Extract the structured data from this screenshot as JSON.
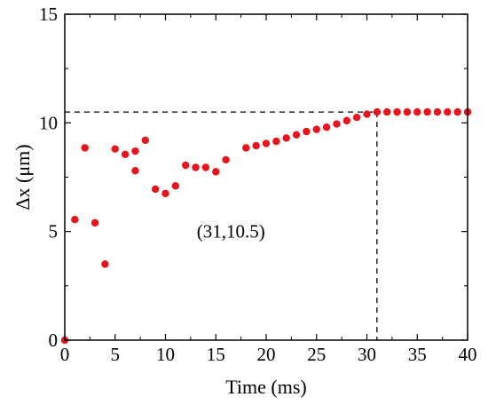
{
  "chart_data": {
    "type": "scatter",
    "title": "",
    "xlabel": "Time (ms)",
    "ylabel": "Δx (μm)",
    "xlim": [
      0,
      40
    ],
    "ylim": [
      0,
      15
    ],
    "xticks": [
      0,
      5,
      10,
      15,
      20,
      25,
      30,
      35,
      40
    ],
    "yticks": [
      0,
      5,
      10,
      15
    ],
    "grid": false,
    "marker_color": "#e8141b",
    "series": [
      {
        "points": [
          [
            0,
            0
          ],
          [
            1,
            5.55
          ],
          [
            2,
            8.85
          ],
          [
            3,
            5.4
          ],
          [
            4,
            3.5
          ],
          [
            5,
            8.8
          ],
          [
            6,
            8.55
          ],
          [
            7,
            8.7
          ],
          [
            7,
            7.8
          ],
          [
            8,
            9.2
          ],
          [
            9,
            6.95
          ],
          [
            10,
            6.75
          ],
          [
            11,
            7.1
          ],
          [
            12,
            8.05
          ],
          [
            13,
            7.95
          ],
          [
            14,
            7.95
          ],
          [
            15,
            7.75
          ],
          [
            16,
            8.3
          ],
          [
            18,
            8.85
          ],
          [
            19,
            8.95
          ],
          [
            20,
            9.05
          ],
          [
            21,
            9.15
          ],
          [
            22,
            9.3
          ],
          [
            23,
            9.45
          ],
          [
            24,
            9.6
          ],
          [
            25,
            9.7
          ],
          [
            26,
            9.8
          ],
          [
            27,
            9.95
          ],
          [
            28,
            10.1
          ],
          [
            29,
            10.25
          ],
          [
            30,
            10.4
          ],
          [
            31,
            10.5
          ],
          [
            32,
            10.5
          ],
          [
            33,
            10.5
          ],
          [
            34,
            10.5
          ],
          [
            35,
            10.5
          ],
          [
            36,
            10.5
          ],
          [
            37,
            10.5
          ],
          [
            38,
            10.5
          ],
          [
            39,
            10.5
          ],
          [
            40,
            10.5
          ]
        ]
      }
    ],
    "reference_point": {
      "x": 31,
      "y": 10.5
    },
    "annotation": "(31,10.5)",
    "annotation_position": {
      "x": 16.5,
      "y": 5
    }
  }
}
